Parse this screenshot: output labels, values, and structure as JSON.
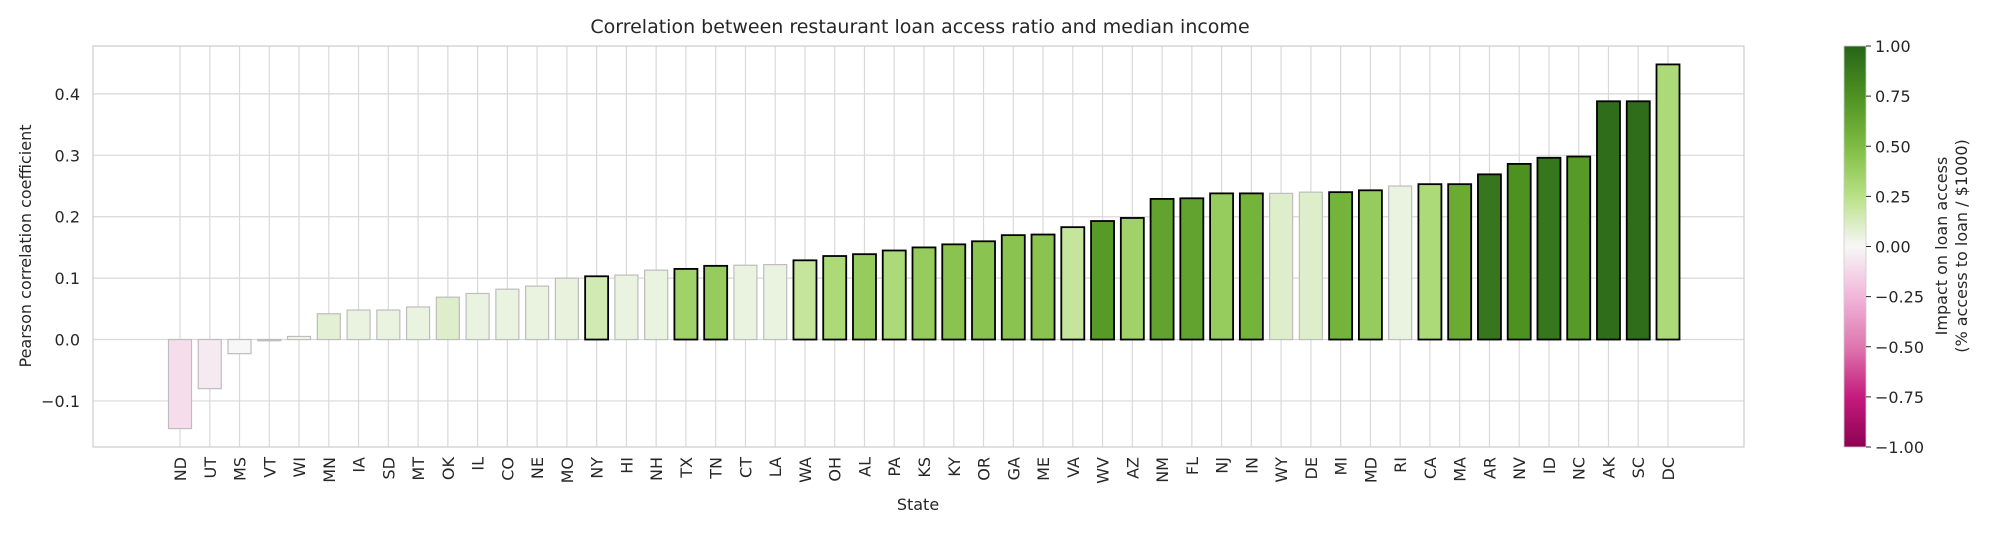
{
  "chart_data": {
    "type": "bar",
    "title": "Correlation between restaurant loan access ratio and median income",
    "xlabel": "State",
    "ylabel": "Pearson correlation coefficient",
    "ylim": [
      -0.175,
      0.478
    ],
    "yticks": [
      -0.1,
      0.0,
      0.1,
      0.2,
      0.3,
      0.4
    ],
    "ytick_labels": [
      "−0.1",
      "0.0",
      "0.1",
      "0.2",
      "0.3",
      "0.4"
    ],
    "grid": true,
    "categories": [
      "ND",
      "UT",
      "MS",
      "VT",
      "WI",
      "MN",
      "IA",
      "SD",
      "MT",
      "OK",
      "IL",
      "CO",
      "NE",
      "MO",
      "NY",
      "HI",
      "NH",
      "TX",
      "TN",
      "CT",
      "LA",
      "WA",
      "OH",
      "AL",
      "PA",
      "KS",
      "KY",
      "OR",
      "GA",
      "ME",
      "VA",
      "WV",
      "AZ",
      "NM",
      "FL",
      "NJ",
      "IN",
      "WY",
      "DE",
      "MI",
      "MD",
      "RI",
      "CA",
      "MA",
      "AR",
      "NV",
      "ID",
      "NC",
      "AK",
      "SC",
      "DC"
    ],
    "values": [
      -0.145,
      -0.08,
      -0.023,
      -0.002,
      0.005,
      0.042,
      0.048,
      0.048,
      0.053,
      0.069,
      0.075,
      0.082,
      0.087,
      0.1,
      0.103,
      0.105,
      0.113,
      0.115,
      0.12,
      0.121,
      0.122,
      0.129,
      0.136,
      0.139,
      0.145,
      0.15,
      0.155,
      0.16,
      0.17,
      0.171,
      0.183,
      0.193,
      0.198,
      0.229,
      0.23,
      0.238,
      0.238,
      0.238,
      0.24,
      0.24,
      0.243,
      0.25,
      0.253,
      0.253,
      0.269,
      0.286,
      0.296,
      0.298,
      0.388,
      0.388,
      0.448
    ],
    "impact": [
      -0.1,
      -0.05,
      0.0,
      0.0,
      0.02,
      0.08,
      0.05,
      0.05,
      0.05,
      0.1,
      0.05,
      0.05,
      0.05,
      0.06,
      0.15,
      0.05,
      0.05,
      0.35,
      0.4,
      0.05,
      0.05,
      0.2,
      0.3,
      0.4,
      0.3,
      0.4,
      0.45,
      0.45,
      0.45,
      0.45,
      0.2,
      0.7,
      0.35,
      0.65,
      0.65,
      0.4,
      0.55,
      0.1,
      0.1,
      0.55,
      0.4,
      0.05,
      0.3,
      0.6,
      0.9,
      0.75,
      0.9,
      0.7,
      0.95,
      0.95,
      0.3
    ],
    "significant": [
      false,
      false,
      false,
      false,
      false,
      false,
      false,
      false,
      false,
      false,
      false,
      false,
      false,
      false,
      true,
      false,
      false,
      true,
      true,
      false,
      false,
      true,
      true,
      true,
      true,
      true,
      true,
      true,
      true,
      true,
      true,
      true,
      true,
      true,
      true,
      true,
      true,
      false,
      false,
      true,
      true,
      false,
      true,
      true,
      true,
      true,
      true,
      true,
      true,
      true,
      true
    ],
    "colorbar": {
      "label_line1": "Impact on loan access",
      "label_line2": "(% access to loan / $1000)",
      "range": [
        -1.0,
        1.0
      ],
      "ticks": [
        1.0,
        0.75,
        0.5,
        0.25,
        0.0,
        -0.25,
        -0.5,
        -0.75,
        -1.0
      ],
      "tick_labels": [
        "1.00",
        "0.75",
        "0.50",
        "0.25",
        "0.00",
        "−0.25",
        "−0.50",
        "−0.75",
        "−1.00"
      ],
      "colormap": "PiYG",
      "colors": {
        "neg_end": "#8e0152",
        "neg_mid": "#de77ae",
        "neutral": "#f7f7f7",
        "pos_mid": "#7fbc41",
        "pos_end": "#276419"
      }
    }
  }
}
